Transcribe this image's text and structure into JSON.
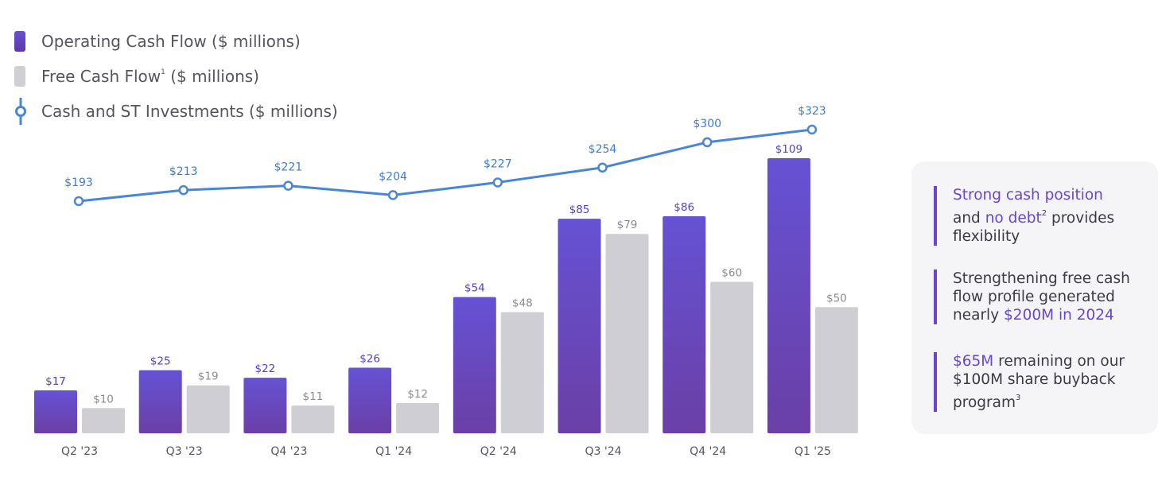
{
  "legend": {
    "operating": "Operating Cash Flow ($ millions)",
    "fcf_main": "Free Cash Flow",
    "fcf_sup": "1",
    "fcf_rest": " ($ millions)",
    "cash": "Cash and ST Investments ($ millions)"
  },
  "colors": {
    "operating_top": "#6552d4",
    "operating_bottom": "#6b3fa6",
    "fcf": "#cfced4",
    "line": "#4a86d6",
    "highlight": "#6a45d0"
  },
  "chart_data": {
    "type": "bar",
    "categories": [
      "Q2 '23",
      "Q3 '23",
      "Q4 '23",
      "Q1 '24",
      "Q2 '24",
      "Q3 '24",
      "Q4 '24",
      "Q1 '25"
    ],
    "series": [
      {
        "name": "Operating Cash Flow ($ millions)",
        "kind": "bar",
        "values": [
          17,
          25,
          22,
          26,
          54,
          85,
          86,
          109
        ],
        "labels": [
          "$17",
          "$25",
          "$22",
          "$26",
          "$54",
          "$85",
          "$86",
          "$109"
        ]
      },
      {
        "name": "Free Cash Flow ($ millions)",
        "kind": "bar",
        "values": [
          10,
          19,
          11,
          12,
          48,
          79,
          60,
          50
        ],
        "labels": [
          "$10",
          "$19",
          "$11",
          "$12",
          "$48",
          "$79",
          "$60",
          "$50"
        ]
      },
      {
        "name": "Cash and ST Investments ($ millions)",
        "kind": "line",
        "values": [
          193,
          213,
          221,
          204,
          227,
          254,
          300,
          323
        ],
        "labels": [
          "$193",
          "$213",
          "$221",
          "$204",
          "$227",
          "$254",
          "$300",
          "$323"
        ]
      }
    ],
    "ylim_bars": [
      0,
      109
    ],
    "ylim_line": [
      193,
      323
    ],
    "grid": false,
    "legend_position": "top-left"
  },
  "panel": {
    "note1": {
      "hl1": "Strong cash position",
      "t1": "and ",
      "hl2": "no debt",
      "sup": "2",
      "t2": " provides flexibility"
    },
    "note2": {
      "t1": "Strengthening free cash flow profile generated nearly ",
      "hl": "$200M in 2024"
    },
    "note3": {
      "hl": "$65M",
      "t1": " remaining on our $100M share buyback program",
      "sup": "3"
    }
  }
}
